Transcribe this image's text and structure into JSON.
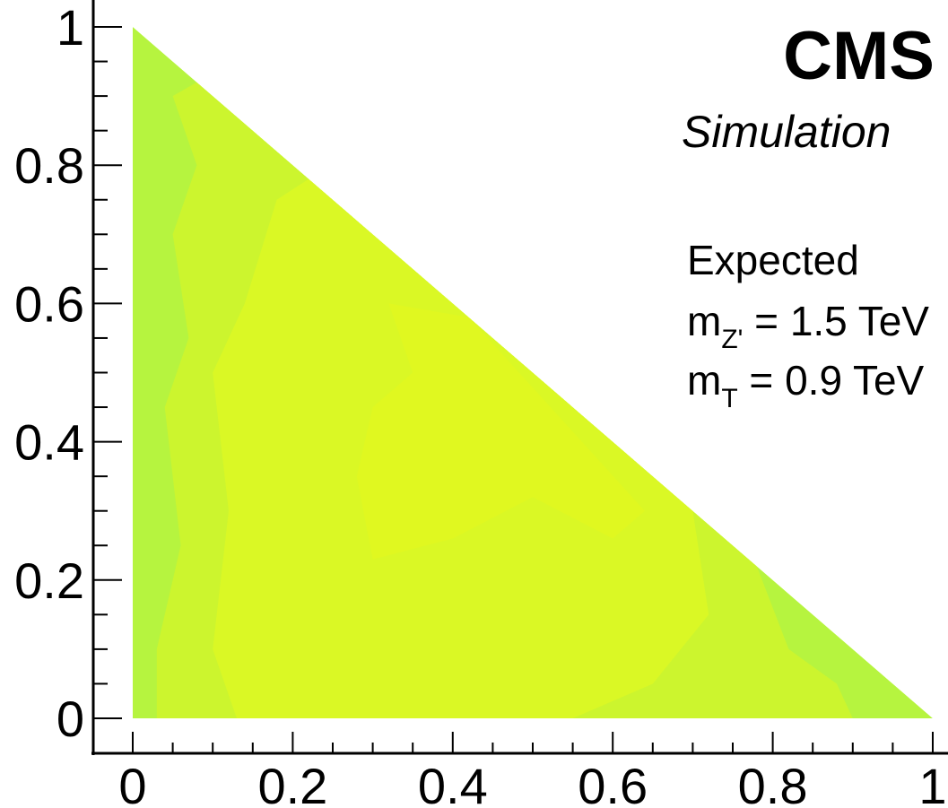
{
  "chart_data": {
    "type": "heatmap",
    "title": "CMS",
    "subtitle": "Simulation",
    "xlabel": "",
    "ylabel": "",
    "xlim": [
      0,
      1
    ],
    "ylim": [
      0,
      1
    ],
    "region": "triangle x+y<=1",
    "x_ticks": [
      "0",
      "0.2",
      "0.4",
      "0.6",
      "0.8",
      "1"
    ],
    "y_ticks": [
      "0",
      "0.2",
      "0.4",
      "0.6",
      "0.8",
      "1"
    ],
    "x_tick_values": [
      0,
      0.2,
      0.4,
      0.6,
      0.8,
      1
    ],
    "y_tick_values": [
      0,
      0.2,
      0.4,
      0.6,
      0.8,
      1
    ],
    "annotations": {
      "line1": "Expected",
      "line2_main": "m",
      "line2_sub": "Z'",
      "line2_rest": " = 1.5 TeV",
      "line3_main": "m",
      "line3_sub": "T",
      "line3_rest": " = 0.9 TeV"
    },
    "grid": false,
    "legend": "none",
    "colors": {
      "edge": "#b6f43f",
      "mid": "#ccf52e",
      "high": "#daf825",
      "peak": "#e0f820"
    },
    "levels": [
      {
        "name": "edge",
        "polygon": [
          [
            0,
            0
          ],
          [
            0,
            1
          ],
          [
            0.05,
            0.95
          ],
          [
            0.9,
            0.1
          ],
          [
            1,
            0
          ],
          [
            0.5,
            0
          ]
        ]
      },
      {
        "name": "mid",
        "polygon": [
          [
            0.03,
            0
          ],
          [
            0.03,
            0.1
          ],
          [
            0.06,
            0.25
          ],
          [
            0.04,
            0.45
          ],
          [
            0.07,
            0.55
          ],
          [
            0.05,
            0.7
          ],
          [
            0.08,
            0.8
          ],
          [
            0.05,
            0.9
          ],
          [
            0.08,
            0.92
          ],
          [
            0.78,
            0.22
          ],
          [
            0.82,
            0.1
          ],
          [
            0.88,
            0.05
          ],
          [
            0.9,
            0
          ]
        ]
      },
      {
        "name": "high",
        "polygon": [
          [
            0.13,
            0
          ],
          [
            0.1,
            0.1
          ],
          [
            0.12,
            0.3
          ],
          [
            0.1,
            0.5
          ],
          [
            0.14,
            0.6
          ],
          [
            0.18,
            0.75
          ],
          [
            0.22,
            0.78
          ],
          [
            0.7,
            0.3
          ],
          [
            0.72,
            0.15
          ],
          [
            0.65,
            0.05
          ],
          [
            0.55,
            0
          ]
        ]
      },
      {
        "name": "peak",
        "polygon": [
          [
            0.3,
            0.23
          ],
          [
            0.4,
            0.26
          ],
          [
            0.5,
            0.32
          ],
          [
            0.6,
            0.26
          ],
          [
            0.64,
            0.3
          ],
          [
            0.42,
            0.58
          ],
          [
            0.32,
            0.6
          ],
          [
            0.35,
            0.5
          ],
          [
            0.3,
            0.45
          ],
          [
            0.28,
            0.35
          ]
        ]
      }
    ]
  }
}
